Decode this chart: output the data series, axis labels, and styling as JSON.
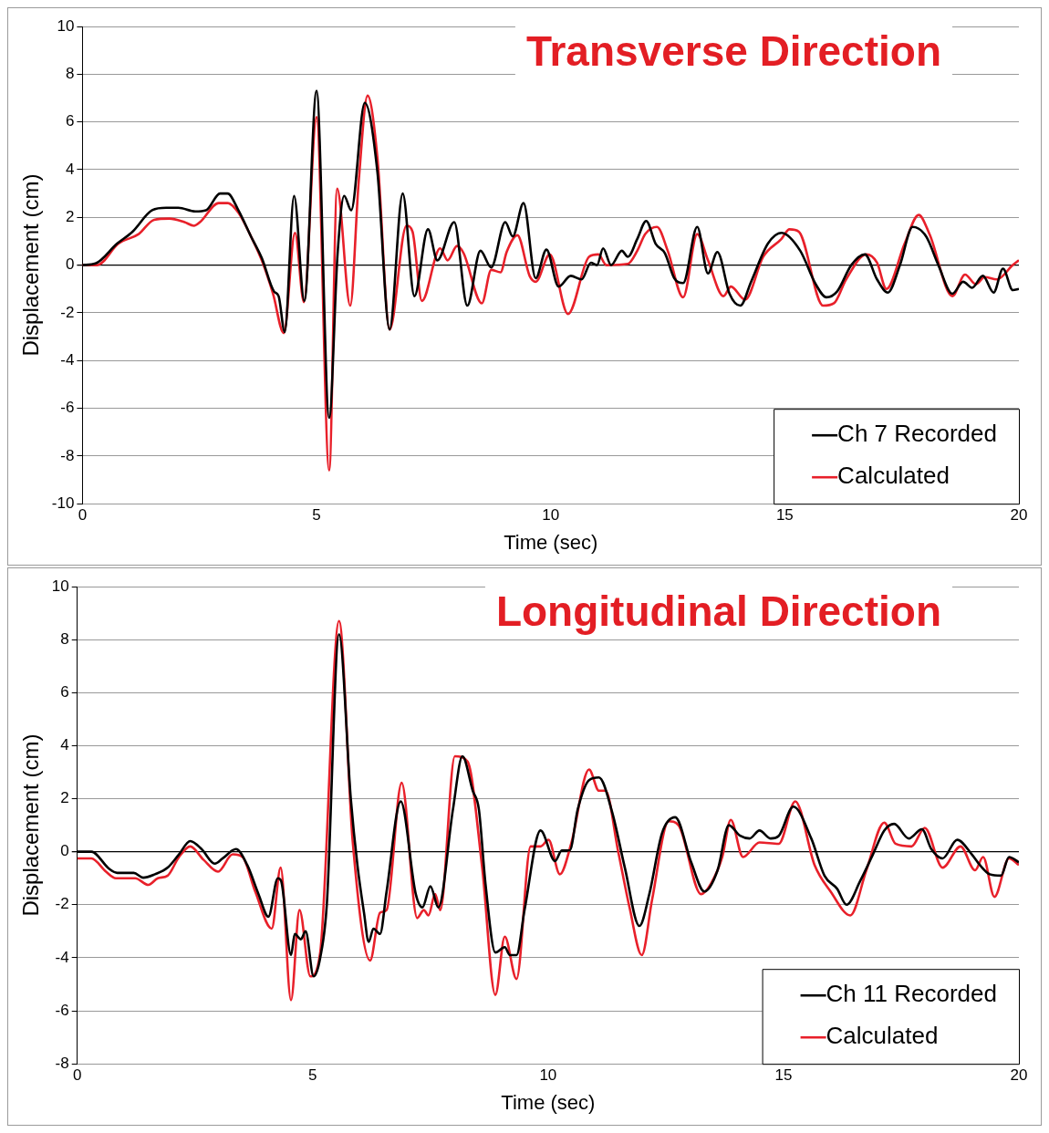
{
  "chart_data": [
    {
      "type": "line",
      "title": "Transverse Direction",
      "xlabel": "Time (sec)",
      "ylabel": "Displacement (cm)",
      "xlim": [
        0,
        20
      ],
      "xticks": [
        0,
        5,
        10,
        15,
        20
      ],
      "ylim": [
        -10,
        10
      ],
      "yticks": [
        -10,
        -8,
        -6,
        -4,
        -2,
        0,
        2,
        4,
        6,
        8,
        10
      ],
      "grid": "y",
      "legend": "bottom right",
      "marker": "none",
      "line_style": "solid",
      "series": [
        {
          "name": "Ch 7 Recorded",
          "color": "#000000",
          "x": [
            0,
            0.28,
            0.74,
            1.07,
            1.49,
            1.79,
            2.05,
            2.41,
            2.64,
            2.94,
            3.1,
            3.33,
            3.6,
            3.83,
            4.09,
            4.19,
            4.32,
            4.52,
            4.74,
            5.0,
            5.27,
            5.45,
            5.59,
            5.74,
            6.03,
            6.3,
            6.56,
            6.84,
            7.09,
            7.38,
            7.58,
            7.94,
            8.22,
            8.5,
            8.73,
            9.03,
            9.19,
            9.42,
            9.68,
            9.91,
            10.17,
            10.43,
            10.66,
            10.86,
            10.99,
            11.12,
            11.29,
            11.52,
            11.65,
            11.85,
            12.04,
            12.24,
            12.44,
            12.64,
            12.83,
            13.13,
            13.36,
            13.56,
            13.82,
            14.05,
            14.28,
            14.64,
            14.93,
            15.33,
            15.66,
            15.89,
            16.12,
            16.42,
            16.71,
            16.97,
            17.2,
            17.46,
            17.73,
            18.02,
            18.28,
            18.58,
            18.81,
            19.0,
            19.23,
            19.46,
            19.66,
            19.87,
            20
          ],
          "values": [
            0,
            0.07,
            0.9,
            1.4,
            2.3,
            2.4,
            2.4,
            2.25,
            2.3,
            3.0,
            3.0,
            2.3,
            1.2,
            0.3,
            -1.1,
            -1.3,
            -2.8,
            2.9,
            -1.5,
            7.3,
            -6.4,
            0.5,
            2.9,
            2.3,
            6.8,
            3.9,
            -2.7,
            3.0,
            -1.3,
            1.5,
            0.2,
            1.8,
            -1.7,
            0.6,
            -0.1,
            1.8,
            1.2,
            2.6,
            -0.55,
            0.65,
            -0.9,
            -0.45,
            -0.6,
            0.1,
            0.0,
            0.7,
            0.0,
            0.6,
            0.35,
            1.1,
            1.85,
            0.9,
            0.5,
            -0.55,
            -0.75,
            1.6,
            -0.35,
            0.55,
            -1.2,
            -1.7,
            -0.7,
            0.9,
            1.35,
            0.6,
            -0.8,
            -1.35,
            -1.1,
            0.0,
            0.45,
            -0.6,
            -1.15,
            0.0,
            1.6,
            1.2,
            0.0,
            -1.2,
            -0.7,
            -0.95,
            -0.45,
            -1.15,
            -0.15,
            -1.05,
            -1.0
          ]
        },
        {
          "name": "Calculated",
          "color": "#e8202a",
          "x": [
            0,
            0.31,
            0.77,
            1.2,
            1.53,
            1.86,
            2.18,
            2.38,
            2.51,
            2.91,
            3.1,
            3.33,
            3.6,
            3.83,
            4.07,
            4.3,
            4.54,
            4.73,
            5.0,
            5.27,
            5.44,
            5.72,
            5.9,
            6.09,
            6.3,
            6.56,
            6.92,
            7.05,
            7.25,
            7.64,
            7.8,
            8.0,
            8.14,
            8.53,
            8.73,
            8.93,
            9.06,
            9.29,
            9.55,
            9.68,
            9.98,
            10.37,
            10.82,
            11.02,
            11.19,
            11.65,
            11.85,
            12.02,
            12.27,
            12.5,
            12.83,
            13.13,
            13.36,
            13.69,
            13.85,
            14.15,
            14.54,
            14.93,
            15.1,
            15.3,
            15.82,
            16.05,
            16.31,
            16.74,
            16.97,
            17.17,
            17.56,
            17.86,
            18.09,
            18.58,
            18.85,
            19.08,
            19.27,
            19.53,
            19.87,
            20
          ],
          "values": [
            0,
            0,
            0.9,
            1.3,
            1.9,
            1.95,
            1.8,
            1.65,
            1.8,
            2.6,
            2.6,
            2.2,
            1.2,
            0.2,
            -1.2,
            -2.85,
            1.35,
            -1.55,
            6.2,
            -8.6,
            3.2,
            -1.7,
            3.5,
            7.1,
            4.5,
            -2.7,
            1.65,
            1.4,
            -1.5,
            0.7,
            0.2,
            0.8,
            0.5,
            -1.6,
            -0.2,
            -0.3,
            0.55,
            1.25,
            -0.45,
            -0.7,
            0.45,
            -2.05,
            0.35,
            0.45,
            0.0,
            0.05,
            0.6,
            1.3,
            1.6,
            0.6,
            -1.35,
            1.3,
            0.2,
            -1.3,
            -0.9,
            -1.45,
            0.35,
            1.1,
            1.5,
            1.4,
            -1.7,
            -1.6,
            -0.6,
            0.45,
            0.1,
            -1.0,
            0.9,
            2.1,
            1.3,
            -1.3,
            -0.4,
            -0.8,
            -0.5,
            -0.6,
            0.0,
            0.2
          ]
        }
      ]
    },
    {
      "type": "line",
      "title": "Longitudinal Direction",
      "xlabel": "Time (sec)",
      "ylabel": "Displacement (cm)",
      "xlim": [
        0,
        20
      ],
      "xticks": [
        0,
        5,
        10,
        15,
        20
      ],
      "ylim": [
        -8,
        10
      ],
      "yticks": [
        -8,
        -6,
        -4,
        -2,
        0,
        2,
        4,
        6,
        8,
        10
      ],
      "grid": "y",
      "legend": "bottom right",
      "marker": "none",
      "line_style": "solid",
      "series": [
        {
          "name": "Ch 11 Recorded",
          "color": "#000000",
          "x": [
            0,
            0.3,
            0.68,
            0.85,
            1.2,
            1.4,
            1.65,
            1.92,
            2.16,
            2.4,
            2.64,
            2.92,
            3.09,
            3.37,
            3.61,
            3.85,
            4.06,
            4.26,
            4.33,
            4.54,
            4.62,
            4.75,
            4.85,
            5.02,
            5.16,
            5.3,
            5.56,
            5.81,
            5.95,
            6.09,
            6.19,
            6.29,
            6.43,
            6.57,
            6.87,
            7.19,
            7.33,
            7.5,
            7.67,
            7.98,
            8.18,
            8.4,
            8.53,
            8.67,
            8.88,
            9.08,
            9.19,
            9.33,
            9.5,
            9.84,
            10.15,
            10.29,
            10.46,
            10.63,
            10.87,
            11.08,
            11.36,
            11.63,
            11.94,
            12.15,
            12.42,
            12.7,
            13.04,
            13.32,
            13.6,
            13.84,
            14.08,
            14.28,
            14.49,
            14.73,
            14.9,
            15.21,
            15.59,
            15.87,
            16.14,
            16.34,
            16.63,
            16.9,
            17.14,
            17.35,
            17.66,
            17.94,
            18.14,
            18.38,
            18.69,
            19.0,
            19.17,
            19.38,
            19.62,
            19.79,
            20
          ],
          "values": [
            0,
            0,
            -0.65,
            -0.8,
            -0.8,
            -0.98,
            -0.85,
            -0.6,
            -0.1,
            0.4,
            0.1,
            -0.45,
            -0.25,
            0.1,
            -0.5,
            -1.6,
            -2.45,
            -1.0,
            -1.1,
            -3.9,
            -3.1,
            -3.3,
            -3.0,
            -4.7,
            -4.0,
            -2.0,
            8.2,
            2.0,
            -0.5,
            -2.3,
            -3.4,
            -2.9,
            -3.1,
            -1.5,
            1.9,
            -1.6,
            -2.1,
            -1.3,
            -2.1,
            1.6,
            3.6,
            2.3,
            1.6,
            -1.2,
            -3.8,
            -3.6,
            -3.9,
            -3.9,
            -2.2,
            0.8,
            -0.35,
            0.05,
            0.05,
            1.6,
            2.7,
            2.8,
            1.5,
            -0.6,
            -2.8,
            -1.6,
            0.7,
            1.3,
            -0.4,
            -1.5,
            -0.7,
            1.0,
            0.6,
            0.5,
            0.8,
            0.5,
            0.6,
            1.7,
            0.5,
            -0.9,
            -1.4,
            -2.0,
            -1.1,
            -0.1,
            0.8,
            1.05,
            0.5,
            0.85,
            0.1,
            -0.25,
            0.45,
            -0.1,
            -0.5,
            -0.85,
            -0.9,
            -0.2,
            -0.4
          ]
        },
        {
          "name": "Calculated",
          "color": "#e8202a",
          "x": [
            0,
            0.3,
            0.61,
            0.82,
            1.23,
            1.51,
            1.71,
            1.92,
            2.16,
            2.4,
            2.68,
            2.99,
            3.3,
            3.51,
            3.78,
            4.13,
            4.32,
            4.54,
            4.72,
            4.95,
            5.16,
            5.56,
            5.85,
            6.22,
            6.43,
            6.57,
            6.89,
            7.22,
            7.36,
            7.46,
            7.6,
            7.71,
            8.02,
            8.29,
            8.6,
            8.88,
            9.08,
            9.33,
            9.63,
            9.84,
            10.01,
            10.25,
            10.49,
            10.87,
            11.08,
            11.22,
            11.49,
            11.73,
            11.99,
            12.21,
            12.56,
            12.77,
            13.25,
            13.46,
            13.7,
            13.88,
            14.14,
            14.49,
            14.9,
            15.25,
            15.66,
            16.0,
            16.42,
            16.76,
            17.14,
            17.38,
            17.72,
            18.0,
            18.38,
            18.76,
            19.07,
            19.24,
            19.48,
            19.79,
            20
          ],
          "values": [
            -0.25,
            -0.25,
            -0.75,
            -1.0,
            -1.0,
            -1.25,
            -1.0,
            -0.9,
            -0.2,
            0.2,
            -0.3,
            -0.75,
            -0.1,
            -0.2,
            -1.5,
            -2.9,
            -0.6,
            -5.6,
            -2.2,
            -4.7,
            -3.8,
            8.7,
            0.4,
            -4.1,
            -2.3,
            -2.2,
            2.6,
            -2.5,
            -2.2,
            -2.4,
            -1.6,
            -2.2,
            3.6,
            3.4,
            -0.6,
            -5.4,
            -3.2,
            -4.8,
            0.2,
            0.2,
            0.45,
            -0.85,
            0.3,
            3.1,
            2.3,
            2.3,
            0.0,
            -2.1,
            -3.9,
            -1.8,
            1.15,
            1.0,
            -1.6,
            -1.2,
            -0.2,
            1.2,
            -0.2,
            0.35,
            0.3,
            1.9,
            -0.5,
            -1.5,
            -2.4,
            -0.7,
            1.1,
            0.3,
            0.2,
            0.9,
            -0.6,
            0.2,
            -0.7,
            -0.2,
            -1.7,
            -0.25,
            -0.5
          ]
        }
      ]
    }
  ]
}
